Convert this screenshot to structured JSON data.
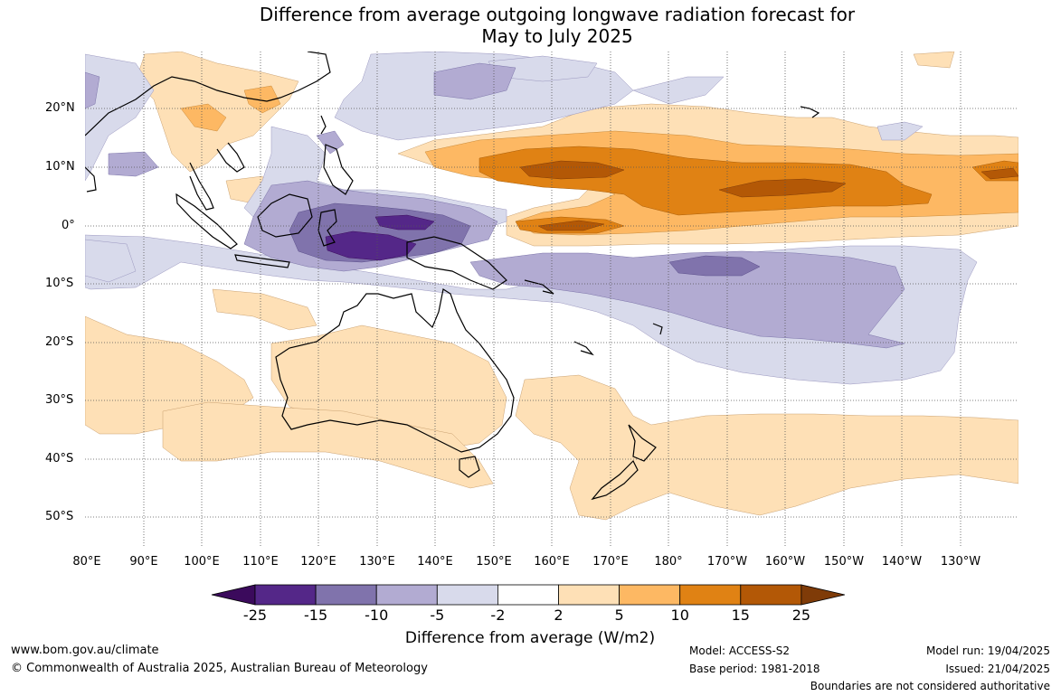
{
  "title": {
    "line1": "Difference from average outgoing longwave radiation forecast for",
    "line2": "May to July 2025"
  },
  "map": {
    "lat_labels": [
      "20°N",
      "10°N",
      "0°",
      "10°S",
      "20°S",
      "30°S",
      "40°S",
      "50°S"
    ],
    "lon_labels": [
      "80°E",
      "90°E",
      "100°E",
      "110°E",
      "120°E",
      "130°E",
      "140°E",
      "150°E",
      "160°E",
      "170°E",
      "180°",
      "170°W",
      "160°W",
      "150°W",
      "140°W",
      "130°W"
    ],
    "colors": {
      "ocean": "#ffffff",
      "land_outline": "#000000",
      "grid": "#555555"
    }
  },
  "legend": {
    "ticks": [
      "-25",
      "-15",
      "-10",
      "-5",
      "-2",
      "2",
      "5",
      "10",
      "15",
      "25"
    ],
    "colors": [
      "#3b0a5c",
      "#542788",
      "#8073ac",
      "#b2abd2",
      "#d8daeb",
      "#ffffff",
      "#fee0b6",
      "#fdb863",
      "#e08214",
      "#b35806",
      "#7f3b08"
    ],
    "label": "Difference from average (W/m2)"
  },
  "footer": {
    "website": "www.bom.gov.au/climate",
    "copyright": "© Commonwealth of Australia 2025, Australian Bureau of Meteorology",
    "model": "Model: ACCESS-S2",
    "base_period": "Base period: 1981-2018",
    "model_run": "Model run: 19/04/2025",
    "issued": "Issued: 21/04/2025",
    "disclaimer": "Boundaries are not considered authoritative"
  }
}
